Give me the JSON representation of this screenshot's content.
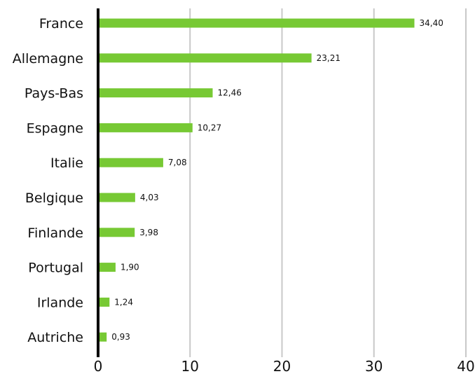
{
  "chart_data": {
    "type": "bar",
    "orientation": "horizontal",
    "categories": [
      "France",
      "Allemagne",
      "Pays-Bas",
      "Espagne",
      "Italie",
      "Belgique",
      "Finlande",
      "Portugal",
      "Irlande",
      "Autriche"
    ],
    "values": [
      34.4,
      23.21,
      12.46,
      10.27,
      7.08,
      4.03,
      3.98,
      1.9,
      1.24,
      0.93
    ],
    "value_labels": [
      "34,40",
      "23,21",
      "12,46",
      "10,27",
      "7,08",
      "4,03",
      "3,98",
      "1,90",
      "1,24",
      "0,93"
    ],
    "xlim": [
      0,
      40
    ],
    "xticks": [
      0,
      10,
      20,
      30,
      40
    ],
    "xtick_labels": [
      "0",
      "10",
      "20",
      "30",
      "40"
    ],
    "grid": "vertical",
    "bar_color": "#77c934",
    "grid_color": "#c8c8c8",
    "axis_color": "#000000"
  }
}
